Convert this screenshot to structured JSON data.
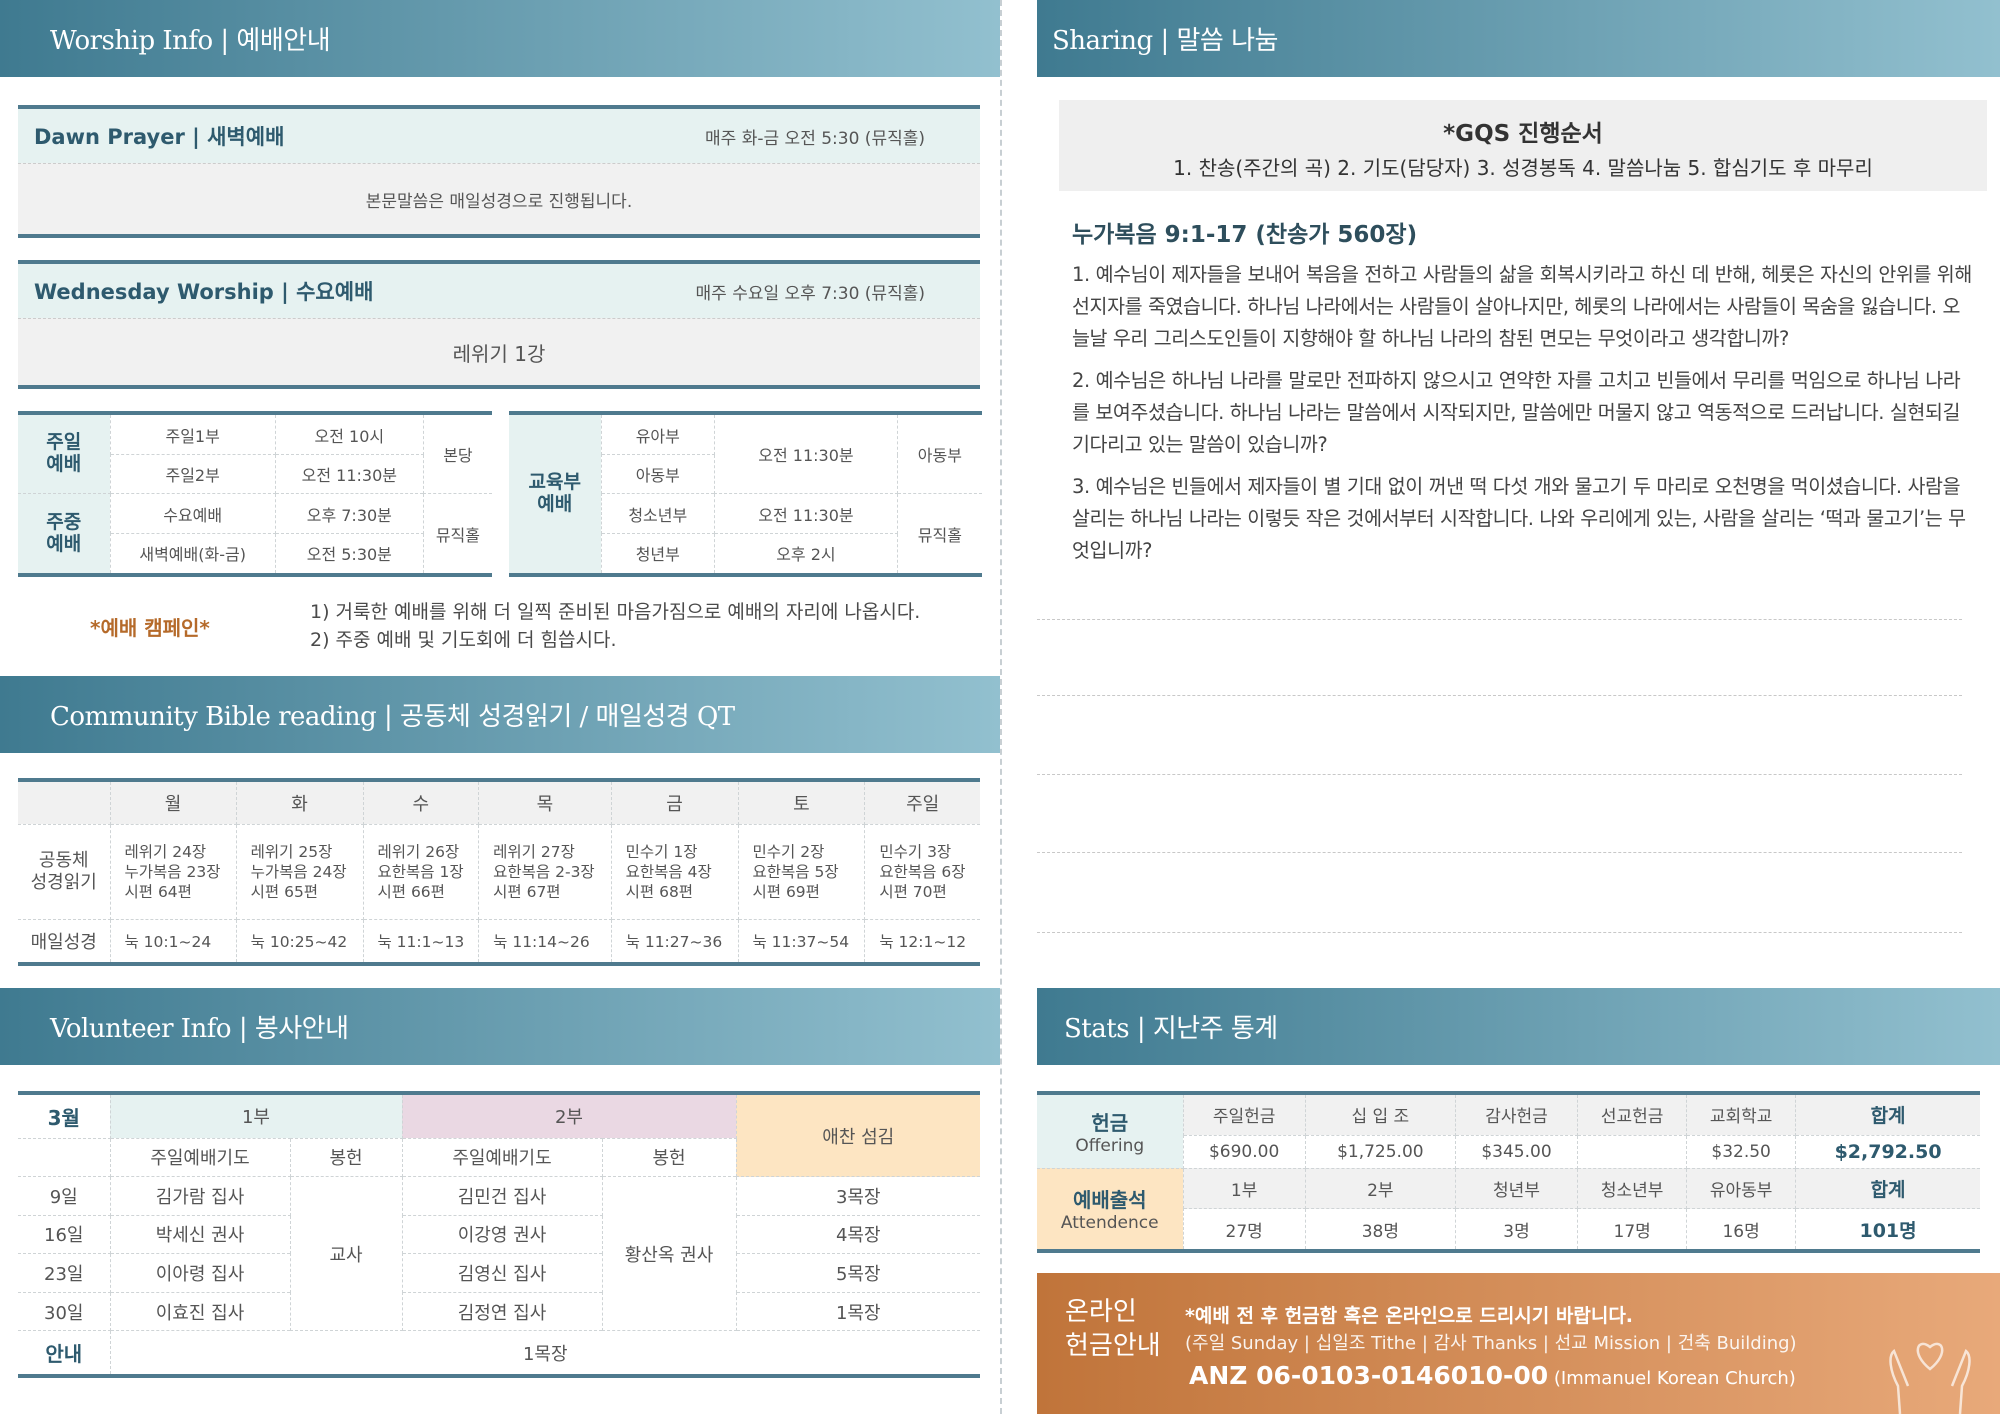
{
  "worship": {
    "header": "Worship Info | 예배안내",
    "dawn": {
      "title": "Dawn Prayer | 새벽예배",
      "time": "매주 화-금 오전 5:30 (뮤직홀)",
      "note": "본문말씀은 매일성경으로 진행됩니다."
    },
    "wed": {
      "title": "Wednesday Worship | 수요예배",
      "time": "매주 수요일 오후 7:30 (뮤직홀)",
      "note": "레위기 1강"
    },
    "left_table": {
      "sunday_label": "주일\n예배",
      "weekday_label": "주중\n예배",
      "rows": [
        [
          "주일1부",
          "오전 10시"
        ],
        [
          "주일2부",
          "오전 11:30분"
        ],
        [
          "수요예배",
          "오후 7:30분"
        ],
        [
          "새벽예배(화-금)",
          "오전 5:30분"
        ]
      ],
      "place1": "본당",
      "place2": "뮤직홀"
    },
    "right_table": {
      "label": "교육부\n예배",
      "rows": [
        "유아부",
        "아동부",
        "청소년부",
        "청년부"
      ],
      "time1": "오전 11:30분",
      "time2": "오전 11:30분",
      "time3": "오후 2시",
      "place1": "아동부",
      "place2": "뮤직홀"
    },
    "campaign": {
      "label": "*예배 캠페인*",
      "line1": "1) 거룩한 예배를 위해 더 일찍 준비된 마음가짐으로 예배의 자리에 나옵시다.",
      "line2": "2) 주중 예배 및 기도회에 더 힘씁시다."
    }
  },
  "bible": {
    "header": "Community Bible reading | 공동체 성경읽기 / 매일성경 QT",
    "days": [
      "월",
      "화",
      "수",
      "목",
      "금",
      "토",
      "주일"
    ],
    "row1_label": "공동체\n성경읽기",
    "row1": [
      "레위기 24장\n누가복음 23장\n시편 64편",
      "레위기 25장\n누가복음 24장\n시편 65편",
      "레위기 26장\n요한복음 1장\n시편 66편",
      "레위기 27장\n요한복음 2-3장\n시편 67편",
      "민수기 1장\n요한복음 4장\n시편 68편",
      "민수기 2장\n요한복음 5장\n시편 69편",
      "민수기 3장\n요한복음 6장\n시편 70편"
    ],
    "row2_label": "매일성경",
    "row2": [
      "눅 10:1~24",
      "눅 10:25~42",
      "눅 11:1~13",
      "눅 11:14~26",
      "눅 11:27~36",
      "눅 11:37~54",
      "눅 12:1~12"
    ]
  },
  "volunteer": {
    "header": "Volunteer Info | 봉사안내",
    "month": "3월",
    "part1": "1부",
    "part2": "2부",
    "choir": "애찬 섬김",
    "prayer": "주일예배기도",
    "offering": "봉헌",
    "rows": [
      {
        "date": "9일",
        "p1": "김가람 집사",
        "p2": "김민건 집사",
        "choir": "3목장"
      },
      {
        "date": "16일",
        "p1": "박세신 권사",
        "p2": "이강영 권사",
        "choir": "4목장"
      },
      {
        "date": "23일",
        "p1": "이아령 집사",
        "p2": "김영신 집사",
        "choir": "5목장"
      },
      {
        "date": "30일",
        "p1": "이효진 집사",
        "p2": "김정연 집사",
        "choir": "1목장"
      }
    ],
    "off1": "교사",
    "off2": "황산옥 권사",
    "guide_label": "안내",
    "guide": "1목장"
  },
  "sharing": {
    "header": "Sharing | 말씀 나눔",
    "gqs_title": "*GQS 진행순서",
    "gqs_steps": "1. 찬송(주간의 곡) 2. 기도(담당자) 3. 성경봉독 4. 말씀나눔 5. 합심기도 후 마무리",
    "passage": "누가복음 9:1-17 (찬송가 560장)",
    "q": [
      "1. 예수님이 제자들을 보내어 복음을 전하고 사람들의 삶을 회복시키라고 하신 데 반해, 헤롯은 자신의 안위를 위해 선지자를 죽였습니다. 하나님 나라에서는 사람들이 살아나지만, 헤롯의 나라에서는 사람들이 목숨을 잃습니다. 오늘날 우리 그리스도인들이 지향해야 할 하나님 나라의 참된 면모는 무엇이라고 생각합니까?",
      "2. 예수님은 하나님 나라를 말로만 전파하지 않으시고 연약한 자를 고치고 빈들에서 무리를 먹임으로 하나님 나라를 보여주셨습니다. 하나님 나라는 말씀에서 시작되지만, 말씀에만 머물지 않고 역동적으로 드러납니다. 실현되길 기다리고 있는 말씀이 있습니까?",
      "3. 예수님은 빈들에서 제자들이 별 기대 없이 꺼낸 떡 다섯 개와 물고기 두 마리로 오천명을 먹이셨습니다. 사람을 살리는 하나님 나라는 이렇듯 작은 것에서부터 시작합니다. 나와 우리에게 있는, 사람을 살리는 ‘떡과 물고기’는 무엇입니까?"
    ]
  },
  "stats": {
    "header": "Stats | 지난주 통계",
    "offering_label": "헌금",
    "offering_en": "Offering",
    "offering_cols": [
      "주일헌금",
      "십 입 조",
      "감사헌금",
      "선교헌금",
      "교회학교",
      "합계"
    ],
    "offering_vals": [
      "$690.00",
      "$1,725.00",
      "$345.00",
      "",
      "$32.50",
      "$2,792.50"
    ],
    "att_label": "예배출석",
    "att_en": "Attendence",
    "att_cols": [
      "1부",
      "2부",
      "청년부",
      "청소년부",
      "유아동부",
      "합계"
    ],
    "att_vals": [
      "27명",
      "38명",
      "3명",
      "17명",
      "16명",
      "101명"
    ]
  },
  "online": {
    "title1": "온라인",
    "title2": "헌금안내",
    "line1": "*예배 전 후 헌금함 혹은 온라인으로 드리시기 바랍니다.",
    "line2": "(주일 Sunday | 십일조 Tithe | 감사 Thanks | 선교 Mission | 건축 Building)",
    "account": "ANZ 06-0103-0146010-00",
    "account_name": "(Immanuel Korean Church)"
  },
  "colors": {
    "teal_dark": "#3f7a90",
    "teal_light": "#92c0cf",
    "orange": "#c0743a",
    "accent_text": "#2e5a6e"
  }
}
